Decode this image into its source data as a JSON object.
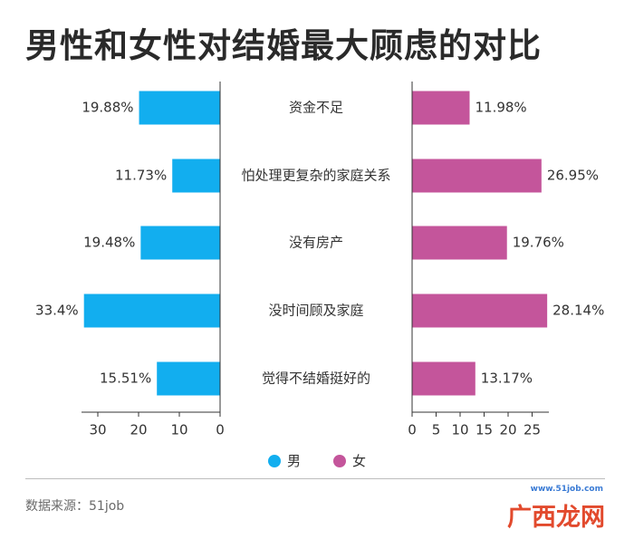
{
  "title": "男性和女性对结婚最大顾虑的对比",
  "colors": {
    "male": "#12aeef",
    "female": "#c4559b",
    "axis": "#333333"
  },
  "chart_data": {
    "type": "bar",
    "title": "男性和女性对结婚最大顾虑的对比",
    "categories": [
      "资金不足",
      "怕处理更复杂的家庭关系",
      "没有房产",
      "没时间顾及家庭",
      "觉得不结婚挺好的"
    ],
    "series": [
      {
        "name": "男",
        "values": [
          19.88,
          11.73,
          19.48,
          33.4,
          15.51
        ],
        "labels": [
          "19.88%",
          "11.73%",
          "19.48%",
          "33.4%",
          "15.51%"
        ]
      },
      {
        "name": "女",
        "values": [
          11.98,
          26.95,
          19.76,
          28.14,
          13.17
        ],
        "labels": [
          "11.98%",
          "26.95%",
          "19.76%",
          "28.14%",
          "13.17%"
        ]
      }
    ],
    "male_axis": {
      "ticks": [
        30,
        20,
        10,
        0
      ],
      "reversed": true
    },
    "female_axis": {
      "ticks": [
        0,
        5,
        10,
        15,
        20,
        25
      ]
    },
    "legend": "bottom-center"
  },
  "legend": {
    "male": "男",
    "female": "女"
  },
  "source": "数据来源：51job",
  "watermark": {
    "url": "www.51job.com",
    "logo": "广西龙网"
  }
}
